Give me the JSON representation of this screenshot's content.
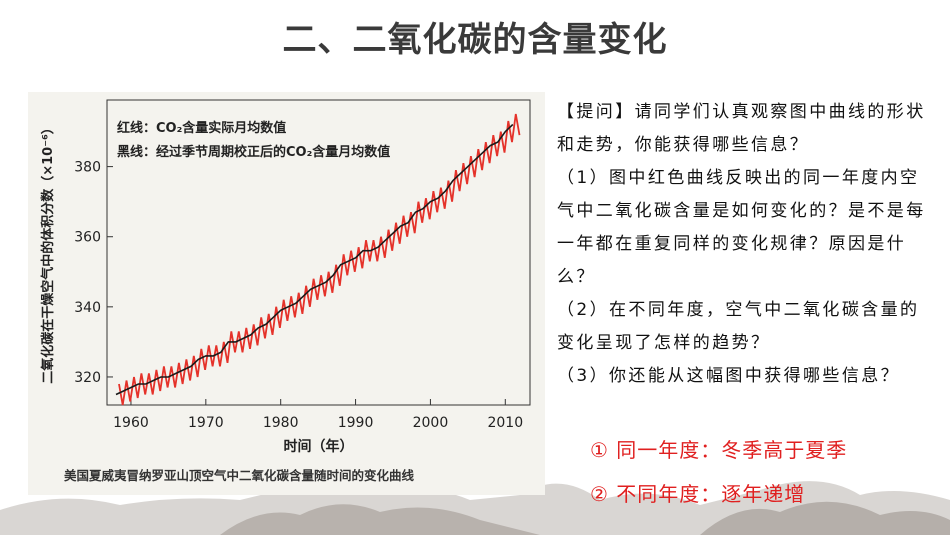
{
  "header": {
    "title": "二、二氧化碳的含量变化"
  },
  "chart_data": {
    "type": "line",
    "ylabel": "二氧化碳在干燥空气中的体积分数（×10⁻⁶）",
    "xlabel": "时间（年）",
    "xlim": [
      1956.8,
      2013.3
    ],
    "xticks": [
      1960,
      1970,
      1980,
      1990,
      2000,
      2010
    ],
    "ylim": [
      312,
      399
    ],
    "yticks": [
      320,
      340,
      360,
      380
    ],
    "legend": "top-left",
    "series": [
      {
        "name": "红线：CO₂含量实际月均数值",
        "color": "#e5322a",
        "x": [
          1958.4,
          1958.9,
          1959.4,
          1959.9,
          1960.4,
          1960.9,
          1961.4,
          1961.9,
          1962.4,
          1962.9,
          1963.4,
          1963.9,
          1964.4,
          1964.9,
          1965.4,
          1965.9,
          1966.4,
          1966.9,
          1967.4,
          1967.9,
          1968.4,
          1968.9,
          1969.4,
          1969.9,
          1970.4,
          1970.9,
          1971.4,
          1971.9,
          1972.4,
          1972.9,
          1973.4,
          1973.9,
          1974.4,
          1974.9,
          1975.4,
          1975.9,
          1976.4,
          1976.9,
          1977.4,
          1977.9,
          1978.4,
          1978.9,
          1979.4,
          1979.9,
          1980.4,
          1980.9,
          1981.4,
          1981.9,
          1982.4,
          1982.9,
          1983.4,
          1983.9,
          1984.4,
          1984.9,
          1985.4,
          1985.9,
          1986.4,
          1986.9,
          1987.4,
          1987.9,
          1988.4,
          1988.9,
          1989.4,
          1989.9,
          1990.4,
          1990.9,
          1991.4,
          1991.9,
          1992.4,
          1992.9,
          1993.4,
          1993.9,
          1994.4,
          1994.9,
          1995.4,
          1995.9,
          1996.4,
          1996.9,
          1997.4,
          1997.9,
          1998.4,
          1998.9,
          1999.4,
          1999.9,
          2000.4,
          2000.9,
          2001.4,
          2001.9,
          2002.4,
          2002.9,
          2003.4,
          2003.9,
          2004.4,
          2004.9,
          2005.4,
          2005.9,
          2006.4,
          2006.9,
          2007.4,
          2007.9,
          2008.4,
          2008.9,
          2009.4,
          2009.9,
          2010.4,
          2010.9,
          2011.4,
          2011.9
        ],
        "values": [
          318,
          312,
          319,
          313,
          320,
          314,
          321,
          315,
          321,
          315,
          322,
          316,
          323,
          317,
          323,
          317,
          324,
          318,
          325,
          319,
          326,
          320,
          328,
          322,
          329,
          323,
          329,
          323,
          330,
          324,
          333,
          327,
          333,
          327,
          334,
          328,
          335,
          329,
          337,
          331,
          338,
          332,
          340,
          334,
          342,
          336,
          343,
          337,
          344,
          338,
          346,
          340,
          348,
          342,
          349,
          343,
          350,
          344,
          352,
          346,
          355,
          349,
          356,
          350,
          357,
          351,
          359,
          353,
          359,
          353,
          360,
          354,
          362,
          356,
          364,
          358,
          366,
          360,
          367,
          361,
          370,
          364,
          371,
          365,
          373,
          367,
          374,
          368,
          376,
          370,
          379,
          373,
          381,
          375,
          383,
          377,
          385,
          379,
          387,
          381,
          389,
          383,
          390,
          384,
          393,
          387,
          395,
          389
        ]
      },
      {
        "name": "黑线：经过季节周期校正后的CO₂含量月均数值",
        "color": "#1a1a1a",
        "x": [
          1958,
          1959,
          1960,
          1961,
          1962,
          1963,
          1964,
          1965,
          1966,
          1967,
          1968,
          1969,
          1970,
          1971,
          1972,
          1973,
          1974,
          1975,
          1976,
          1977,
          1978,
          1979,
          1980,
          1981,
          1982,
          1983,
          1984,
          1985,
          1986,
          1987,
          1988,
          1989,
          1990,
          1991,
          1992,
          1993,
          1994,
          1995,
          1996,
          1997,
          1998,
          1999,
          2000,
          2001,
          2002,
          2003,
          2004,
          2005,
          2006,
          2007,
          2008,
          2009,
          2010,
          2011
        ],
        "values": [
          315,
          316,
          317,
          318,
          318,
          319,
          320,
          320,
          321,
          322,
          323,
          325,
          326,
          326,
          327,
          330,
          330,
          331,
          332,
          334,
          335,
          337,
          339,
          340,
          341,
          343,
          345,
          346,
          347,
          349,
          352,
          353,
          354,
          356,
          356,
          357,
          359,
          361,
          363,
          364,
          367,
          368,
          370,
          371,
          373,
          376,
          378,
          380,
          382,
          384,
          386,
          387,
          390,
          392
        ]
      }
    ]
  },
  "caption": "美国夏威夷冒纳罗亚山顶空气中二氧化碳含量随时间的变化曲线",
  "questions": [
    "【提问】请同学们认真观察图中曲线的形状和走势，你能获得哪些信息？",
    "（1）图中红色曲线反映出的同一年度内空气中二氧化碳含量是如何变化的？是不是每一年都在重复同样的变化规律？原因是什么？",
    "（2）在不同年度，空气中二氧化碳含量的变化呈现了怎样的趋势？",
    "（3）你还能从这幅图中获得哪些信息？"
  ],
  "answers": [
    "① 同一年度：冬季高于夏季",
    "② 不同年度：逐年递增"
  ]
}
